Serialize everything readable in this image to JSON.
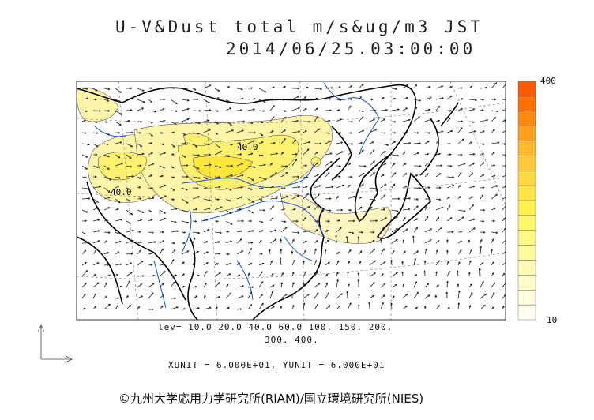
{
  "title": {
    "line1": "U-V&Dust total m/s&ug/m3 JST",
    "line2": "2014/06/25.03:00:00"
  },
  "map": {
    "contour_labels": [
      "40.0",
      "40.0"
    ],
    "colors": {
      "land_outline": "#000000",
      "rivers": "#1f5fe0",
      "grid": "#777777",
      "vectors": "#222222"
    }
  },
  "levels": {
    "line1": "lev= 10.0 20.0 40.0 60.0 100. 150. 200.",
    "line2": "300. 400."
  },
  "units": "XUNIT = 6.000E+01, YUNIT = 6.000E+01",
  "colorbar": {
    "max_label": "400",
    "min_label": "10",
    "colors": [
      "#ff5a00",
      "#ff7000",
      "#ff8a10",
      "#ffa020",
      "#ffb830",
      "#ffc838",
      "#ffd840",
      "#ffe448",
      "#fff050",
      "#fff66a",
      "#fff884",
      "#fffa9c",
      "#fffbb4",
      "#fffcc8",
      "#fffddc",
      "#fffeee"
    ]
  },
  "copyright": "©九州大学応用力学研究所(RIAM)/国立環境研究所(NIES)"
}
